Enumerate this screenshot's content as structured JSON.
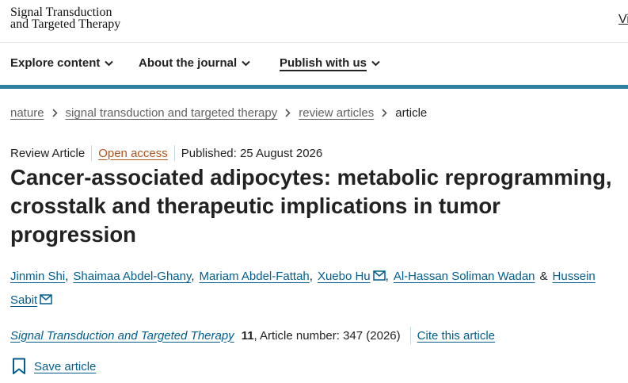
{
  "header": {
    "logo_lines": [
      "Signal Transduction",
      "and Targeted Therapy"
    ],
    "corner_link": "Vi",
    "nav": [
      "Explore content",
      "About the journal",
      "Publish with us"
    ]
  },
  "breadcrumb": [
    "nature",
    "signal transduction and targeted therapy",
    "review articles",
    "article"
  ],
  "meta": {
    "article_type": "Review Article",
    "access": "Open access",
    "published": "Published: 25 August 2026"
  },
  "title_lines": [
    "Cancer-associated adipocytes: metabolic reprogramming,",
    "crosstalk and therapeutic implications in tumor",
    "progression"
  ],
  "authors": [
    {
      "name": "Jinmin Shi",
      "after": ","
    },
    {
      "name": "Shaimaa Abdel-Ghany",
      "after": ","
    },
    {
      "name": "Mariam Abdel-Fattah",
      "after": ","
    },
    {
      "name": "Xuebo Hu",
      "email": true,
      "after": ","
    },
    {
      "name": "Al-Hassan Soliman Wadan",
      "after": "&"
    },
    {
      "name": "Hussein Sabit",
      "email": true
    }
  ],
  "citation": {
    "journal": "Signal Transduction and Targeted Therapy",
    "volume": "11",
    "details": ", Article number: 347 (2026)",
    "cite_link": "Cite this article"
  },
  "save": "Save article"
}
